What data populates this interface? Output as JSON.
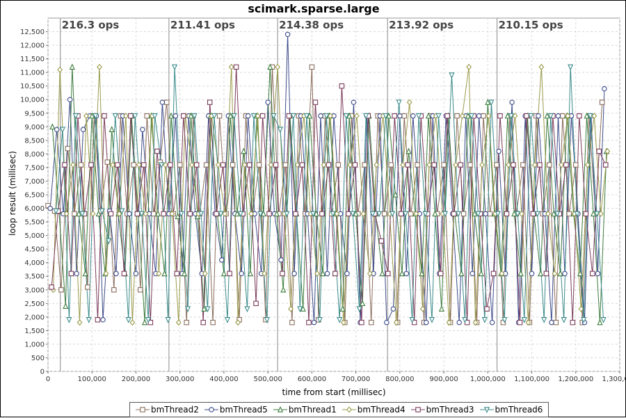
{
  "chart_data": {
    "type": "line",
    "title": "scimark.sparse.large",
    "xlabel": "time from start (millisec)",
    "ylabel": "loop result (millisec)",
    "xlim": [
      0,
      1300000
    ],
    "ylim": [
      0,
      13000
    ],
    "x_ticks": [
      "0",
      "100,000",
      "200,000",
      "300,000",
      "400,000",
      "500,000",
      "600,000",
      "700,000",
      "800,000",
      "900,000",
      "1,000,000",
      "1,100,000",
      "1,200,000",
      "1,300,000"
    ],
    "y_ticks": [
      "0",
      "500",
      "1,000",
      "1,500",
      "2,000",
      "2,500",
      "3,000",
      "3,500",
      "4,000",
      "4,500",
      "5,000",
      "5,500",
      "6,000",
      "6,500",
      "7,000",
      "7,500",
      "8,000",
      "8,500",
      "9,000",
      "9,500",
      "10,000",
      "10,500",
      "11,000",
      "11,500",
      "12,000",
      "12,500"
    ],
    "grid": true,
    "legend_position": "bottom",
    "run_markers": [
      {
        "x": 28000,
        "label": "216.3 ops"
      },
      {
        "x": 275000,
        "label": "211.41 ops"
      },
      {
        "x": 522000,
        "label": "214.38 ops"
      },
      {
        "x": 772000,
        "label": "213.92 ops"
      },
      {
        "x": 1021000,
        "label": "210.15 ops"
      }
    ],
    "series": [
      {
        "name": "bmThread2",
        "color": "#8b6d5c",
        "marker": "square",
        "x": [
          0,
          15000,
          30000,
          45000,
          60000,
          75000,
          90000,
          105000,
          120000,
          135000,
          150000,
          165000,
          180000,
          195000,
          210000,
          225000,
          240000,
          255000,
          270000,
          285000,
          300000,
          315000,
          330000,
          345000,
          360000,
          375000,
          390000,
          405000,
          420000,
          435000,
          450000,
          465000,
          480000,
          495000,
          510000,
          525000,
          540000,
          555000,
          570000,
          585000,
          600000,
          615000,
          630000,
          645000,
          660000,
          675000,
          690000,
          705000,
          720000,
          735000,
          750000,
          765000,
          780000,
          795000,
          810000,
          825000,
          840000,
          855000,
          870000,
          885000,
          900000,
          915000,
          930000,
          945000,
          960000,
          975000,
          990000,
          1005000,
          1020000,
          1035000,
          1050000,
          1065000,
          1080000,
          1095000,
          1110000,
          1125000,
          1140000,
          1155000,
          1170000,
          1185000,
          1200000,
          1215000,
          1230000,
          1245000,
          1260000
        ],
        "y": [
          6100,
          5900,
          3000,
          8200,
          5800,
          7600,
          3100,
          9400,
          5900,
          7700,
          3000,
          9400,
          5800,
          7600,
          3000,
          9400,
          5800,
          7700,
          9900,
          5800,
          7600,
          1800,
          9400,
          5800,
          7600,
          1800,
          9400,
          5800,
          7600,
          1900,
          9400,
          5800,
          7600,
          1900,
          11200,
          5800,
          7600,
          1800,
          9400,
          5800,
          11200,
          1900,
          9400,
          5800,
          7600,
          1800,
          9400,
          5800,
          7600,
          1800,
          9400,
          5800,
          7600,
          1800,
          9400,
          5800,
          7600,
          1800,
          9400,
          5800,
          7600,
          1800,
          9400,
          5800,
          7600,
          1800,
          9400,
          5800,
          7600,
          1800,
          9400,
          5800,
          7600,
          1800,
          9400,
          5800,
          7600,
          1800,
          9400,
          5800,
          7600,
          1800,
          9400,
          5800,
          9900
        ]
      },
      {
        "name": "bmThread5",
        "color": "#3b4a8a",
        "marker": "circle",
        "x": [
          5000,
          20000,
          35000,
          50000,
          65000,
          80000,
          95000,
          110000,
          125000,
          140000,
          155000,
          170000,
          185000,
          200000,
          215000,
          230000,
          245000,
          260000,
          275000,
          290000,
          305000,
          320000,
          335000,
          350000,
          365000,
          380000,
          395000,
          410000,
          425000,
          440000,
          455000,
          470000,
          485000,
          500000,
          515000,
          530000,
          545000,
          560000,
          575000,
          590000,
          605000,
          620000,
          635000,
          650000,
          665000,
          680000,
          695000,
          710000,
          725000,
          740000,
          755000,
          770000,
          785000,
          800000,
          815000,
          830000,
          845000,
          860000,
          875000,
          890000,
          905000,
          920000,
          935000,
          950000,
          965000,
          980000,
          995000,
          1010000,
          1025000,
          1040000,
          1055000,
          1070000,
          1085000,
          1100000,
          1115000,
          1130000,
          1145000,
          1160000,
          1175000,
          1190000,
          1205000,
          1220000,
          1235000,
          1250000,
          1265000
        ],
        "y": [
          6000,
          8900,
          5800,
          10000,
          3600,
          8900,
          9400,
          9400,
          1900,
          5900,
          3600,
          9400,
          5800,
          3600,
          8900,
          5800,
          3600,
          9900,
          5800,
          9400,
          3600,
          9400,
          5800,
          3600,
          9400,
          5800,
          4100,
          9400,
          5800,
          3600,
          9400,
          5800,
          3600,
          9900,
          5800,
          4100,
          12400,
          3600,
          9400,
          5800,
          1800,
          9400,
          3600,
          9400,
          5800,
          3600,
          9900,
          1800,
          9400,
          3600,
          9400,
          1800,
          2300,
          9400,
          3600,
          9400,
          5800,
          1800,
          9400,
          3600,
          9400,
          5800,
          1800,
          9400,
          3600,
          9400,
          5800,
          1800,
          8100,
          3600,
          9900,
          1800,
          9400,
          3600,
          9400,
          5800,
          1800,
          9400,
          3600,
          9400,
          5800,
          1800,
          9400,
          3600,
          10400
        ]
      },
      {
        "name": "bmThread1",
        "color": "#3a7a3a",
        "marker": "triangle",
        "x": [
          10000,
          25000,
          40000,
          55000,
          70000,
          85000,
          100000,
          115000,
          130000,
          145000,
          160000,
          175000,
          190000,
          205000,
          220000,
          235000,
          250000,
          265000,
          280000,
          295000,
          310000,
          325000,
          340000,
          355000,
          370000,
          385000,
          400000,
          415000,
          430000,
          445000,
          460000,
          475000,
          490000,
          505000,
          520000,
          535000,
          550000,
          565000,
          580000,
          595000,
          610000,
          625000,
          640000,
          655000,
          670000,
          685000,
          700000,
          715000,
          730000,
          745000,
          760000,
          775000,
          790000,
          805000,
          820000,
          835000,
          850000,
          865000,
          880000,
          895000,
          910000,
          925000,
          940000,
          955000,
          970000,
          985000,
          1000000,
          1015000,
          1030000,
          1045000,
          1060000,
          1075000,
          1090000,
          1105000,
          1120000,
          1135000,
          1150000,
          1165000,
          1180000,
          1195000,
          1210000,
          1225000,
          1240000,
          1255000,
          1270000
        ],
        "y": [
          9000,
          5900,
          2400,
          11200,
          5800,
          3600,
          9400,
          5800,
          3600,
          8900,
          5800,
          3600,
          9400,
          5800,
          1800,
          9400,
          5800,
          3600,
          9400,
          5700,
          3600,
          9400,
          5700,
          2300,
          9400,
          5800,
          3600,
          9400,
          5800,
          8100,
          3600,
          9400,
          5800,
          11200,
          5800,
          3000,
          9400,
          5800,
          2300,
          9400,
          5800,
          3600,
          9400,
          5800,
          2300,
          9400,
          5800,
          2500,
          9400,
          5800,
          3600,
          9400,
          6500,
          3600,
          8100,
          5800,
          3600,
          9400,
          5800,
          2300,
          9400,
          5800,
          3600,
          9400,
          5800,
          3600,
          9900,
          5800,
          3600,
          9400,
          5800,
          3600,
          9400,
          5800,
          3600,
          9400,
          5800,
          3600,
          9400,
          5800,
          3600,
          9400,
          5800,
          1800,
          8100
        ]
      },
      {
        "name": "bmThread4",
        "color": "#9a9a4a",
        "marker": "diamond",
        "x": [
          12000,
          27000,
          42000,
          57000,
          72000,
          87000,
          102000,
          117000,
          132000,
          147000,
          162000,
          177000,
          192000,
          207000,
          222000,
          237000,
          252000,
          267000,
          282000,
          297000,
          312000,
          327000,
          342000,
          357000,
          372000,
          387000,
          402000,
          417000,
          432000,
          447000,
          462000,
          477000,
          492000,
          507000,
          522000,
          537000,
          552000,
          567000,
          582000,
          597000,
          612000,
          627000,
          642000,
          657000,
          672000,
          687000,
          702000,
          717000,
          732000,
          747000,
          762000,
          777000,
          792000,
          807000,
          822000,
          837000,
          852000,
          867000,
          882000,
          897000,
          912000,
          927000,
          942000,
          957000,
          972000,
          987000,
          1002000,
          1017000,
          1032000,
          1047000,
          1062000,
          1077000,
          1092000,
          1107000,
          1122000,
          1137000,
          1152000,
          1167000,
          1182000,
          1197000,
          1212000,
          1227000,
          1242000,
          1257000,
          1272000
        ],
        "y": [
          3000,
          11100,
          5800,
          7600,
          1800,
          9400,
          5800,
          11200,
          3600,
          7600,
          5800,
          9400,
          1800,
          7600,
          5800,
          9400,
          3600,
          7600,
          5800,
          1800,
          9400,
          7600,
          5800,
          3600,
          9400,
          7600,
          5800,
          11200,
          1800,
          7600,
          5800,
          9400,
          3600,
          7600,
          11200,
          5800,
          2300,
          7600,
          9400,
          5800,
          3600,
          7600,
          9400,
          5800,
          1800,
          7600,
          9400,
          5800,
          3600,
          7600,
          9400,
          5800,
          1800,
          7600,
          9900,
          5800,
          2300,
          7600,
          9400,
          5800,
          1800,
          7600,
          9400,
          11200,
          1800,
          7600,
          9400,
          5800,
          3600,
          7600,
          9400,
          5800,
          1800,
          7600,
          11200,
          5800,
          3600,
          7600,
          9400,
          5800,
          2300,
          7600,
          9400,
          5800,
          8100
        ]
      },
      {
        "name": "bmThread3",
        "color": "#7a3a5a",
        "marker": "square",
        "x": [
          8000,
          23000,
          38000,
          53000,
          68000,
          83000,
          98000,
          113000,
          128000,
          143000,
          158000,
          173000,
          188000,
          203000,
          218000,
          233000,
          248000,
          263000,
          278000,
          293000,
          308000,
          323000,
          338000,
          353000,
          368000,
          383000,
          398000,
          413000,
          428000,
          443000,
          458000,
          473000,
          488000,
          503000,
          518000,
          533000,
          548000,
          563000,
          578000,
          593000,
          608000,
          623000,
          638000,
          653000,
          668000,
          683000,
          698000,
          713000,
          728000,
          743000,
          758000,
          773000,
          788000,
          803000,
          818000,
          833000,
          848000,
          863000,
          878000,
          893000,
          908000,
          923000,
          938000,
          953000,
          968000,
          983000,
          998000,
          1013000,
          1028000,
          1043000,
          1058000,
          1073000,
          1088000,
          1103000,
          1118000,
          1133000,
          1148000,
          1163000,
          1178000,
          1193000,
          1208000,
          1223000,
          1238000,
          1253000,
          1268000
        ],
        "y": [
          3100,
          5900,
          7600,
          3600,
          9400,
          5800,
          7600,
          1900,
          9400,
          5800,
          7600,
          3600,
          9400,
          5800,
          7600,
          1800,
          8100,
          5800,
          7600,
          3600,
          9400,
          5800,
          7600,
          1800,
          9900,
          5800,
          7600,
          3600,
          11200,
          5800,
          7600,
          2500,
          9400,
          5800,
          7600,
          3600,
          9400,
          5800,
          7600,
          1800,
          9900,
          5800,
          7600,
          3600,
          10500,
          5800,
          7600,
          1800,
          9400,
          5800,
          4800,
          3600,
          9400,
          5800,
          7600,
          1800,
          9400,
          5800,
          7600,
          3600,
          9400,
          5800,
          7600,
          1800,
          9400,
          5800,
          2300,
          3600,
          9400,
          5800,
          7600,
          1800,
          9400,
          5800,
          7600,
          3600,
          9400,
          5800,
          7600,
          1800,
          9400,
          5800,
          3600,
          8100,
          7600
        ]
      },
      {
        "name": "bmThread6",
        "color": "#3a8a8a",
        "marker": "triangle-down",
        "x": [
          18000,
          33000,
          48000,
          63000,
          78000,
          93000,
          108000,
          123000,
          138000,
          153000,
          168000,
          183000,
          198000,
          213000,
          228000,
          243000,
          258000,
          273000,
          288000,
          303000,
          318000,
          333000,
          348000,
          363000,
          378000,
          393000,
          408000,
          423000,
          438000,
          453000,
          468000,
          483000,
          498000,
          513000,
          528000,
          543000,
          558000,
          573000,
          588000,
          603000,
          618000,
          633000,
          648000,
          663000,
          678000,
          693000,
          708000,
          723000,
          738000,
          753000,
          768000,
          783000,
          798000,
          813000,
          828000,
          843000,
          858000,
          873000,
          888000,
          903000,
          918000,
          933000,
          948000,
          963000,
          978000,
          993000,
          1008000,
          1023000,
          1038000,
          1053000,
          1068000,
          1083000,
          1098000,
          1113000,
          1128000,
          1143000,
          1158000,
          1173000,
          1188000,
          1203000,
          1218000,
          1233000,
          1248000,
          1263000
        ],
        "y": [
          5900,
          8900,
          1900,
          9400,
          5800,
          1900,
          9400,
          5900,
          4800,
          9400,
          5900,
          1900,
          9400,
          5800,
          1900,
          9400,
          7600,
          1900,
          11200,
          5800,
          2300,
          9400,
          5800,
          2300,
          9400,
          5800,
          1900,
          9400,
          5800,
          2300,
          9400,
          5800,
          1900,
          9400,
          8900,
          5800,
          9400,
          2300,
          9400,
          5800,
          1900,
          9400,
          5800,
          1900,
          9400,
          5800,
          2300,
          9400,
          5800,
          5800,
          9400,
          5800,
          9900,
          5800,
          1900,
          9400,
          5800,
          1900,
          9400,
          5800,
          10900,
          5800,
          1900,
          9400,
          5800,
          1900,
          9900,
          5800,
          1900,
          9400,
          5800,
          1900,
          9400,
          5800,
          1900,
          9400,
          5800,
          1900,
          11200,
          5800,
          1900,
          9400,
          5800,
          1900
        ]
      }
    ]
  }
}
